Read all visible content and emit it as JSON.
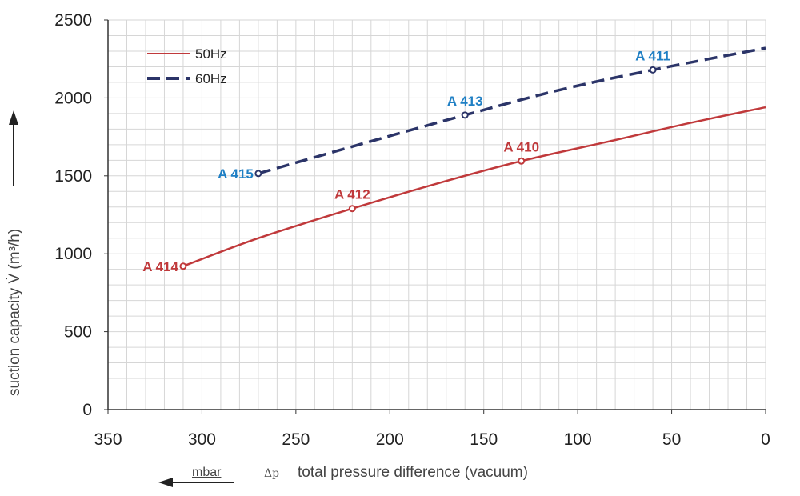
{
  "chart_data": {
    "type": "line",
    "title": "",
    "xlabel": "total pressure difference (vacuum)",
    "xlabel_symbol": "Δp",
    "xunit": "mbar",
    "ylabel": "suction capacity V̇ (m³/h)",
    "xlim": [
      350,
      0
    ],
    "ylim": [
      0,
      2500
    ],
    "x_reversed": true,
    "grid": true,
    "x_ticks": [
      350,
      300,
      250,
      200,
      150,
      100,
      50,
      0
    ],
    "y_ticks": [
      0,
      500,
      1000,
      1500,
      2000,
      2500
    ],
    "legend_position": "top-left",
    "colors": {
      "50Hz": "#c0393b",
      "60Hz": "#2b3468",
      "label50": "#c0393b",
      "label60": "#1f7fc4"
    },
    "series": [
      {
        "name": "50Hz",
        "style": "solid",
        "x": [
          310,
          270,
          220,
          175,
          130,
          80,
          40,
          0
        ],
        "y": [
          920,
          1100,
          1290,
          1450,
          1595,
          1730,
          1840,
          1940
        ],
        "markers": [
          {
            "label": "A 414",
            "x": 310,
            "y": 920
          },
          {
            "label": "A 412",
            "x": 220,
            "y": 1290
          },
          {
            "label": "A 410",
            "x": 130,
            "y": 1595
          }
        ]
      },
      {
        "name": "60Hz",
        "style": "dashed",
        "x": [
          270,
          215,
          160,
          110,
          60,
          0
        ],
        "y": [
          1515,
          1705,
          1890,
          2050,
          2180,
          2320
        ],
        "markers": [
          {
            "label": "A 415",
            "x": 270,
            "y": 1515
          },
          {
            "label": "A 413",
            "x": 160,
            "y": 1890
          },
          {
            "label": "A 411",
            "x": 60,
            "y": 2180
          }
        ]
      }
    ]
  }
}
